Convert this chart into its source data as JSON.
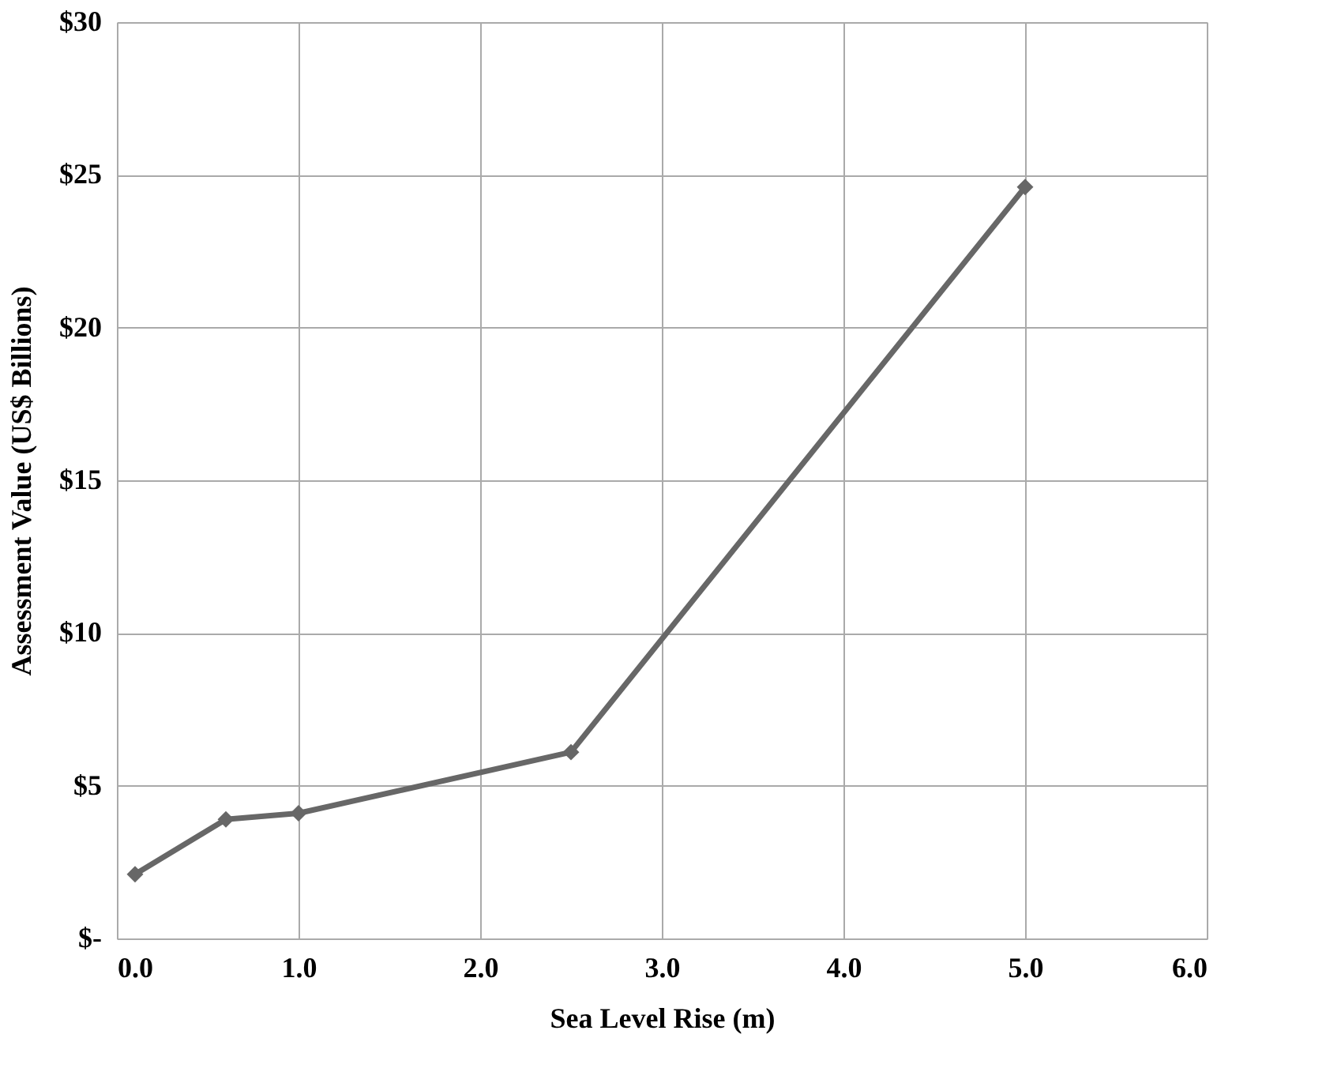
{
  "chart_data": {
    "type": "line",
    "xlabel": "Sea Level Rise (m)",
    "ylabel": "Assessment Value (US$ Billions)",
    "x": [
      0.1,
      0.6,
      1.0,
      2.5,
      5.0
    ],
    "series": [
      {
        "color": "#676767",
        "values": [
          2.1,
          3.9,
          4.1,
          6.1,
          24.6
        ]
      }
    ],
    "xlim": [
      0,
      6
    ],
    "ylim": [
      0,
      30
    ],
    "xticks": [
      {
        "value": 0,
        "label": "0.0"
      },
      {
        "value": 1,
        "label": "1.0"
      },
      {
        "value": 2,
        "label": "2.0"
      },
      {
        "value": 3,
        "label": "3.0"
      },
      {
        "value": 4,
        "label": "4.0"
      },
      {
        "value": 5,
        "label": "5.0"
      },
      {
        "value": 6,
        "label": "6.0"
      }
    ],
    "yticks": [
      {
        "value": 0,
        "label": "$-"
      },
      {
        "value": 5,
        "label": "$5"
      },
      {
        "value": 10,
        "label": "$10"
      },
      {
        "value": 15,
        "label": "$15"
      },
      {
        "value": 20,
        "label": "$20"
      },
      {
        "value": 25,
        "label": "$25"
      },
      {
        "value": 30,
        "label": "$30"
      }
    ],
    "grid": true,
    "marker": "diamond",
    "line_style": "solid",
    "legend": false
  }
}
